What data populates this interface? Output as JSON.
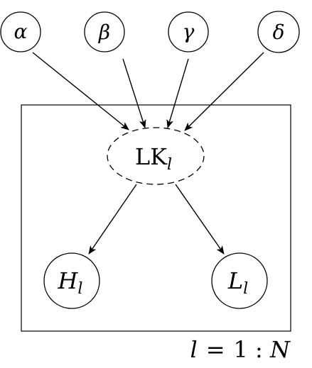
{
  "diagram": {
    "nodes": {
      "alpha": {
        "label": "α"
      },
      "beta": {
        "label": "β"
      },
      "gamma": {
        "label": "γ"
      },
      "delta": {
        "label": "δ"
      },
      "lk": {
        "label_main": "LK",
        "label_sub": "l"
      },
      "h": {
        "label_main": "H",
        "label_sub": "l"
      },
      "l": {
        "label_main": "L",
        "label_sub": "l"
      }
    },
    "edges": [
      {
        "from": "alpha",
        "to": "lk"
      },
      {
        "from": "beta",
        "to": "lk"
      },
      {
        "from": "gamma",
        "to": "lk"
      },
      {
        "from": "delta",
        "to": "lk"
      },
      {
        "from": "lk",
        "to": "h"
      },
      {
        "from": "lk",
        "to": "l"
      }
    ],
    "plate": {
      "index": "l",
      "equals": "=",
      "range": "1 : N",
      "range_end": "N"
    }
  }
}
